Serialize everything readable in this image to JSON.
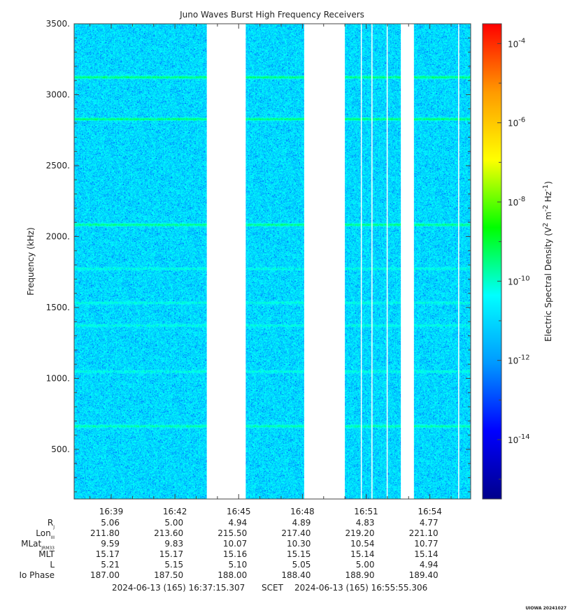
{
  "chart_data": {
    "type": "heatmap",
    "title": "Juno Waves Burst High Frequency Receivers",
    "ylabel": "Frequency (kHz)",
    "y_ticks": [
      "500.",
      "1000.",
      "1500.",
      "2000.",
      "2500.",
      "3000.",
      "3500."
    ],
    "x_ticks": [
      "16:39",
      "16:42",
      "16:45",
      "16:48",
      "16:51",
      "16:54"
    ],
    "ylim": [
      150,
      3500
    ],
    "background_level": "1e-12",
    "emission_lines_khz": [
      3125,
      2830,
      2085,
      1775,
      1535,
      1375,
      1050,
      665
    ],
    "data_gaps": [
      "16:43:30 - 16:45:20",
      "16:48:05 - 16:50:00",
      "16:52:38 - 16:53:15"
    ],
    "colorbar": {
      "label": "Electric Spectral Density (V² m⁻² Hz⁻¹)",
      "label_main": "Electric Spectral Density (V",
      "label_sup1": "2",
      "label_mid": " m",
      "label_sup2": "-2",
      "label_mid2": " Hz",
      "label_sup3": "-1",
      "label_end": ")",
      "log_min": -15.5,
      "log_max": -3.5,
      "tick_exponents": [
        "-4",
        "-6",
        "-8",
        "-10",
        "-12",
        "-14"
      ],
      "tick_base": "10",
      "colors": [
        "#00008b",
        "#0000ff",
        "#0099ff",
        "#00ffff",
        "#00ff00",
        "#ffff00",
        "#ff9900",
        "#ff0000"
      ]
    },
    "ephemeris": {
      "row_labels": [
        {
          "main": "R",
          "sub": "J"
        },
        {
          "main": "Lon",
          "sub": "III"
        },
        {
          "main": "MLat",
          "sub": "JRM33"
        },
        {
          "main": "MLT",
          "sub": ""
        },
        {
          "main": "L",
          "sub": ""
        },
        {
          "main": "Io Phase",
          "sub": ""
        }
      ],
      "columns": [
        [
          "5.06",
          "211.80",
          "9.59",
          "15.17",
          "5.21",
          "187.00"
        ],
        [
          "5.00",
          "213.60",
          "9.83",
          "15.17",
          "5.15",
          "187.50"
        ],
        [
          "4.94",
          "215.50",
          "10.07",
          "15.16",
          "5.10",
          "188.00"
        ],
        [
          "4.89",
          "217.40",
          "10.30",
          "15.15",
          "5.05",
          "188.40"
        ],
        [
          "4.83",
          "219.20",
          "10.54",
          "15.14",
          "5.00",
          "188.90"
        ],
        [
          "4.77",
          "221.10",
          "10.77",
          "15.14",
          "4.94",
          "189.40"
        ]
      ]
    },
    "time_range": {
      "start": "2024-06-13 (165) 16:37:15.307",
      "separator": "SCET",
      "end": "2024-06-13 (165) 16:55:55.306"
    },
    "credit": "UIOWA 20241027"
  }
}
